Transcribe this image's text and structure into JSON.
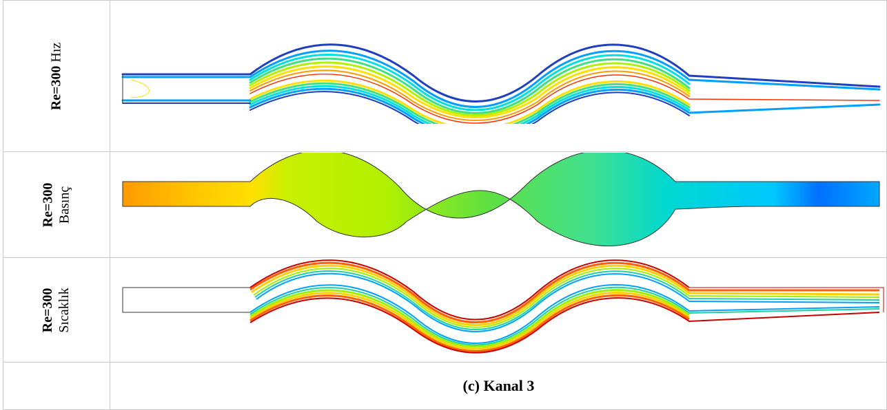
{
  "rows": [
    {
      "re": "Re=300",
      "field": "Hız"
    },
    {
      "re": "Re=300",
      "field": "Basınç"
    },
    {
      "re": "Re=300",
      "field": "Sıcaklık"
    }
  ],
  "caption": "(c) Kanal 3",
  "colors": {
    "grid": "#c9c9c9",
    "outline": "#333333",
    "velocity_contours": [
      "#1f3fbf",
      "#00a0ff",
      "#00e0e0",
      "#40e080",
      "#b0f000",
      "#ffe000",
      "#ff9a00",
      "#ff3000",
      "#ffffff"
    ],
    "pressure_fill": [
      "#ff9a00",
      "#ffc000",
      "#ffe000",
      "#b0f000",
      "#60e040",
      "#00d8d0",
      "#00c8ff",
      "#0070ff"
    ],
    "temperature_contours": [
      "#c80000",
      "#ff6000",
      "#ffd000",
      "#a0f000",
      "#20d0a0",
      "#00a0ff"
    ]
  }
}
